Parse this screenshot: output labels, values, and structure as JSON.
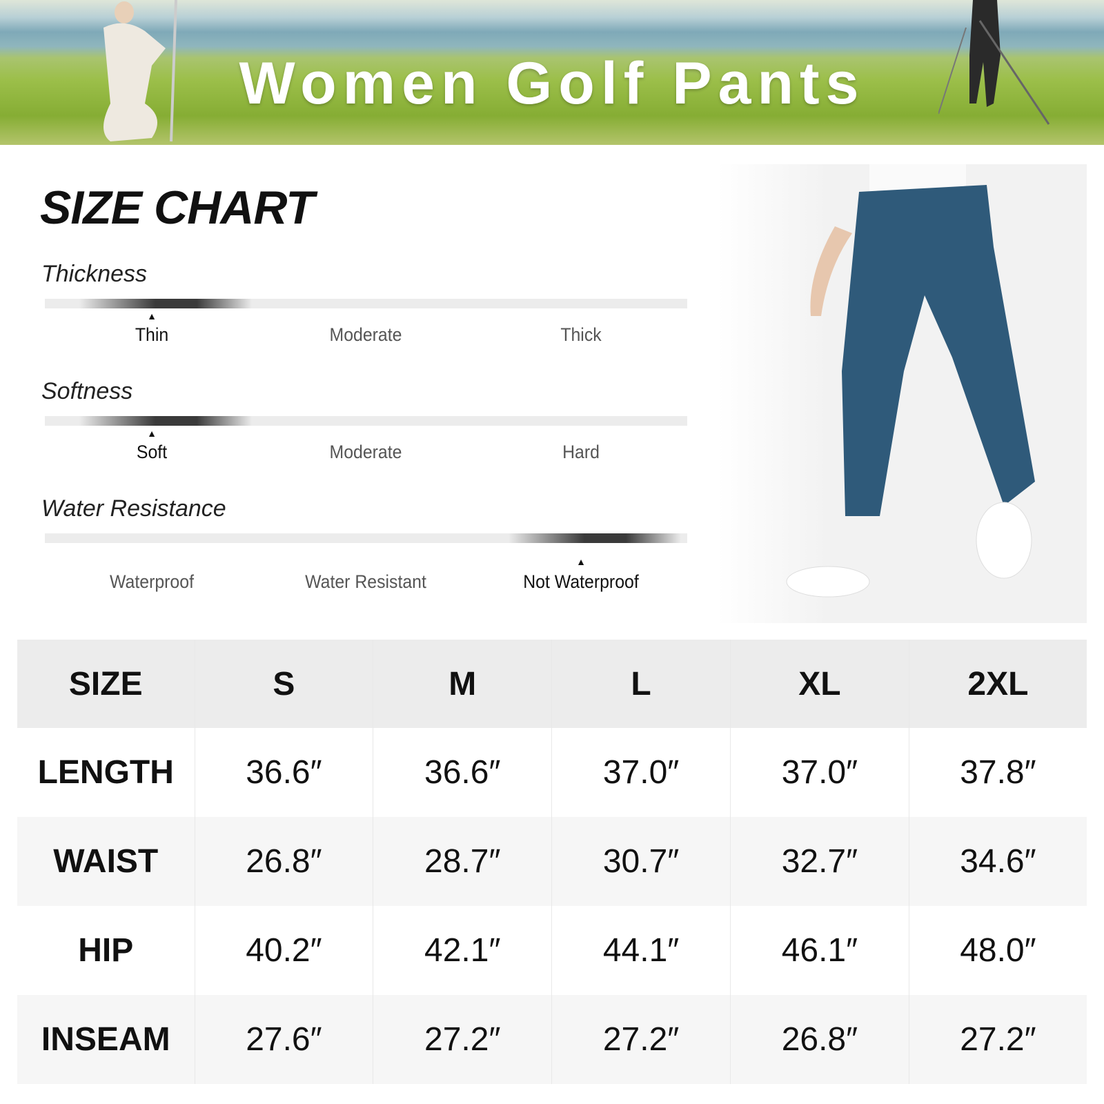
{
  "banner": {
    "title": "Women Golf Pants"
  },
  "title": "SIZE CHART",
  "attributes": [
    {
      "name": "Thickness",
      "options": [
        "Thin",
        "Moderate",
        "Thick"
      ],
      "selected": 0
    },
    {
      "name": "Softness",
      "options": [
        "Soft",
        "Moderate",
        "Hard"
      ],
      "selected": 0
    },
    {
      "name": "Water Resistance",
      "options": [
        "Waterproof",
        "Water Resistant",
        "Not Waterproof"
      ],
      "selected": 2
    }
  ],
  "colors": {
    "pants": "#2f5a7a",
    "header_row": "#ececec",
    "alt_row": "#f6f6f6"
  },
  "table": {
    "headers": [
      "SIZE",
      "S",
      "M",
      "L",
      "XL",
      "2XL"
    ],
    "rows": [
      [
        "LENGTH",
        "36.6″",
        "36.6″",
        "37.0″",
        "37.0″",
        "37.8″"
      ],
      [
        "WAIST",
        "26.8″",
        "28.7″",
        "30.7″",
        "32.7″",
        "34.6″"
      ],
      [
        "HIP",
        "40.2″",
        "42.1″",
        "44.1″",
        "46.1″",
        "48.0″"
      ],
      [
        "INSEAM",
        "27.6″",
        "27.2″",
        "27.2″",
        "26.8″",
        "27.2″"
      ]
    ]
  }
}
